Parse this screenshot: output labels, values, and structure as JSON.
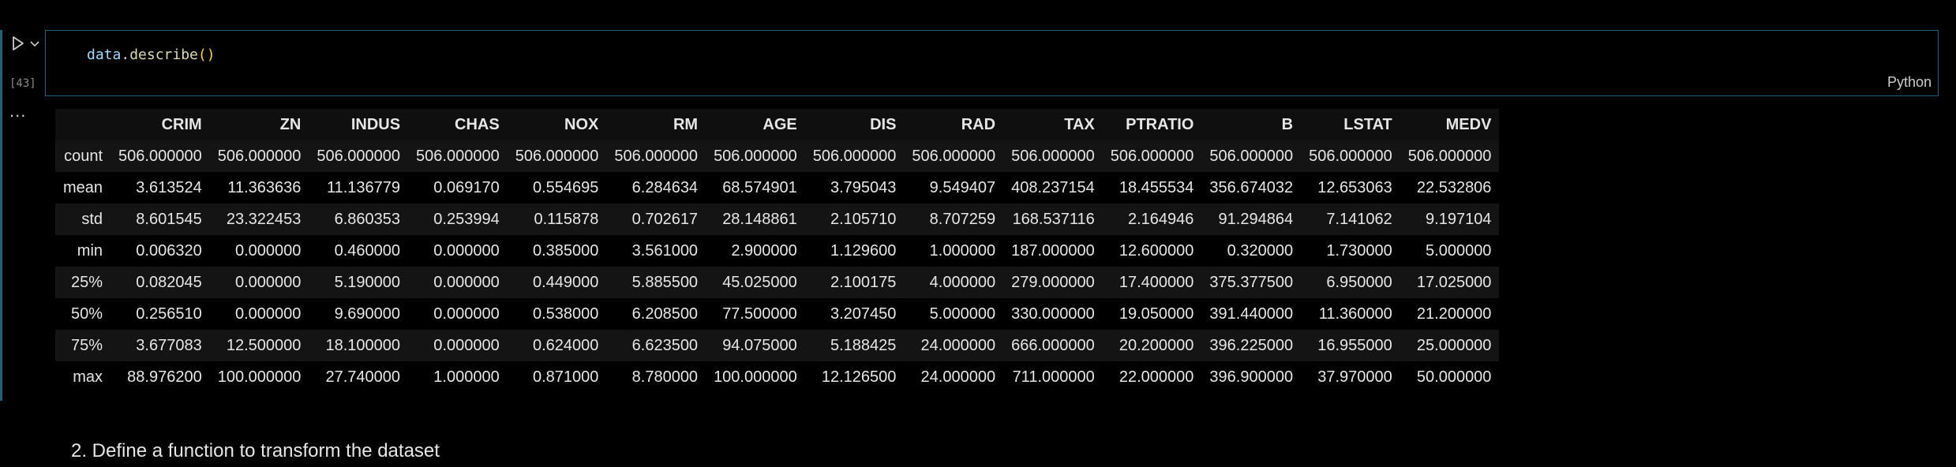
{
  "cell": {
    "execution_count": "[43]",
    "code": {
      "var": "data",
      "dot": ".",
      "fn": "describe",
      "parens": "()"
    },
    "language": "Python",
    "output_more": "..."
  },
  "table": {
    "index_header": "",
    "columns": [
      "CRIM",
      "ZN",
      "INDUS",
      "CHAS",
      "NOX",
      "RM",
      "AGE",
      "DIS",
      "RAD",
      "TAX",
      "PTRATIO",
      "B",
      "LSTAT",
      "MEDV"
    ],
    "rows": [
      {
        "label": "count",
        "values": [
          "506.000000",
          "506.000000",
          "506.000000",
          "506.000000",
          "506.000000",
          "506.000000",
          "506.000000",
          "506.000000",
          "506.000000",
          "506.000000",
          "506.000000",
          "506.000000",
          "506.000000",
          "506.000000"
        ]
      },
      {
        "label": "mean",
        "values": [
          "3.613524",
          "11.363636",
          "11.136779",
          "0.069170",
          "0.554695",
          "6.284634",
          "68.574901",
          "3.795043",
          "9.549407",
          "408.237154",
          "18.455534",
          "356.674032",
          "12.653063",
          "22.532806"
        ]
      },
      {
        "label": "std",
        "values": [
          "8.601545",
          "23.322453",
          "6.860353",
          "0.253994",
          "0.115878",
          "0.702617",
          "28.148861",
          "2.105710",
          "8.707259",
          "168.537116",
          "2.164946",
          "91.294864",
          "7.141062",
          "9.197104"
        ]
      },
      {
        "label": "min",
        "values": [
          "0.006320",
          "0.000000",
          "0.460000",
          "0.000000",
          "0.385000",
          "3.561000",
          "2.900000",
          "1.129600",
          "1.000000",
          "187.000000",
          "12.600000",
          "0.320000",
          "1.730000",
          "5.000000"
        ]
      },
      {
        "label": "25%",
        "values": [
          "0.082045",
          "0.000000",
          "5.190000",
          "0.000000",
          "0.449000",
          "5.885500",
          "45.025000",
          "2.100175",
          "4.000000",
          "279.000000",
          "17.400000",
          "375.377500",
          "6.950000",
          "17.025000"
        ]
      },
      {
        "label": "50%",
        "values": [
          "0.256510",
          "0.000000",
          "9.690000",
          "0.000000",
          "0.538000",
          "6.208500",
          "77.500000",
          "3.207450",
          "5.000000",
          "330.000000",
          "19.050000",
          "391.440000",
          "11.360000",
          "21.200000"
        ]
      },
      {
        "label": "75%",
        "values": [
          "3.677083",
          "12.500000",
          "18.100000",
          "0.000000",
          "0.624000",
          "6.623500",
          "94.075000",
          "5.188425",
          "24.000000",
          "666.000000",
          "20.200000",
          "396.225000",
          "16.955000",
          "25.000000"
        ]
      },
      {
        "label": "max",
        "values": [
          "88.976200",
          "100.000000",
          "27.740000",
          "1.000000",
          "0.871000",
          "8.780000",
          "100.000000",
          "12.126500",
          "24.000000",
          "711.000000",
          "22.000000",
          "396.900000",
          "37.970000",
          "50.000000"
        ]
      }
    ]
  },
  "markdown": {
    "text": "2. Define a function to transform the dataset"
  },
  "icons": {
    "run": "play-icon",
    "expand": "chevron-down-icon",
    "more": "ellipsis-icon"
  },
  "colors": {
    "cell_border": "#1e5f7a",
    "var": "#9cdcfe",
    "function": "#dcdcaa",
    "paren": "#ffd700"
  }
}
